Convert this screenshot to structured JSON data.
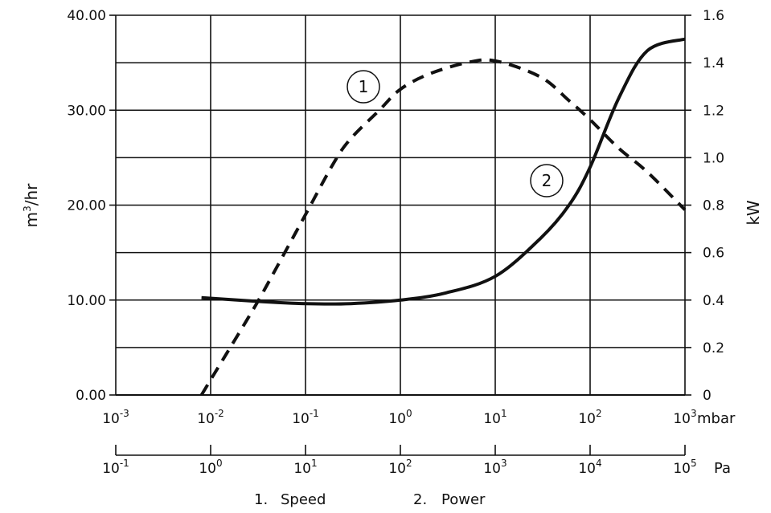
{
  "chart_data": {
    "type": "line",
    "title": "",
    "x_scale": "log",
    "x_primary": {
      "unit": "mbar",
      "range": [
        0.001,
        1000
      ],
      "ticks": [
        {
          "base": "10",
          "exp": "-3"
        },
        {
          "base": "10",
          "exp": "-2"
        },
        {
          "base": "10",
          "exp": "-1"
        },
        {
          "base": "10",
          "exp": "0"
        },
        {
          "base": "10",
          "exp": "1"
        },
        {
          "base": "10",
          "exp": "2"
        },
        {
          "base": "10",
          "exp": "3"
        }
      ]
    },
    "x_secondary": {
      "unit": "Pa",
      "ticks": [
        {
          "base": "10",
          "exp": "-1"
        },
        {
          "base": "10",
          "exp": "0"
        },
        {
          "base": "10",
          "exp": "1"
        },
        {
          "base": "10",
          "exp": "2"
        },
        {
          "base": "10",
          "exp": "3"
        },
        {
          "base": "10",
          "exp": "4"
        },
        {
          "base": "10",
          "exp": "5"
        }
      ]
    },
    "y_left": {
      "label_base": "m",
      "label_sup": "3",
      "label_rest": "/hr",
      "range": [
        0,
        40
      ],
      "ticks": [
        "0.00",
        "10.00",
        "20.00",
        "30.00",
        "40.00"
      ]
    },
    "y_right": {
      "label": "kW",
      "range": [
        0,
        1.6
      ],
      "ticks": [
        "0",
        "0.2",
        "0.4",
        "0.6",
        "0.8",
        "1.0",
        "1.2",
        "1.4",
        "1.6"
      ]
    },
    "grid": true,
    "series": [
      {
        "id": "speed",
        "marker": "1",
        "style": "dashed",
        "axis": "left",
        "points": [
          [
            0.008,
            0
          ],
          [
            0.015,
            4.5
          ],
          [
            0.03,
            9.5
          ],
          [
            0.05,
            13.5
          ],
          [
            0.1,
            19
          ],
          [
            0.2,
            24.5
          ],
          [
            0.3,
            27
          ],
          [
            0.6,
            30
          ],
          [
            1,
            32.2
          ],
          [
            2,
            33.8
          ],
          [
            5,
            35
          ],
          [
            10,
            35.2
          ],
          [
            30,
            33.5
          ],
          [
            60,
            31
          ],
          [
            100,
            29
          ],
          [
            200,
            26
          ],
          [
            400,
            23.5
          ],
          [
            1000,
            19.5
          ]
        ]
      },
      {
        "id": "power",
        "marker": "2",
        "style": "solid",
        "axis": "right",
        "points": [
          [
            0.008,
            0.41
          ],
          [
            0.03,
            0.395
          ],
          [
            0.1,
            0.385
          ],
          [
            0.3,
            0.385
          ],
          [
            1,
            0.4
          ],
          [
            3,
            0.43
          ],
          [
            10,
            0.5
          ],
          [
            30,
            0.66
          ],
          [
            60,
            0.8
          ],
          [
            100,
            0.96
          ],
          [
            200,
            1.25
          ],
          [
            400,
            1.45
          ],
          [
            1000,
            1.5
          ]
        ]
      }
    ]
  },
  "legend": {
    "items": [
      {
        "number": "1.",
        "label": "Speed"
      },
      {
        "number": "2.",
        "label": "Power"
      }
    ]
  }
}
